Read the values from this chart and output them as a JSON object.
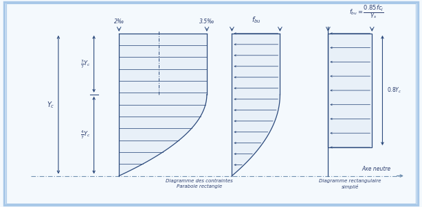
{
  "bg_color": "#f4f9fd",
  "border_color": "#a8c8e8",
  "line_color": "#2c4a7c",
  "text_color": "#2c3e6e",
  "dashed_color": "#7090b0",
  "fill_color": "#e8f0f8",
  "title_text": "",
  "label_bottom1": "Diagramme des contraintes\nParabole rectangle",
  "label_bottom2": "Diagramme rectangulaire\nsimplié",
  "axe_neutre": "Axe neutre",
  "label_2pct": "2‰",
  "label_35pct": "3.5‰",
  "label_fbu": "$f_{bu}$",
  "label_fbu_formula": "$f_{bu} = \\dfrac{0.85fc_j}{\\gamma_s}$",
  "label_Yc": "$Y_c$",
  "label_3_7_Yc": "$\\frac{3}{7}Y_c$",
  "label_4_7_Yc": "$\\frac{4}{7}Y_c$",
  "label_08Yc": "$0.8Y_c$",
  "n_hatches_d1": 12,
  "n_hatches_d2": 13,
  "n_hatches_d3": 8
}
